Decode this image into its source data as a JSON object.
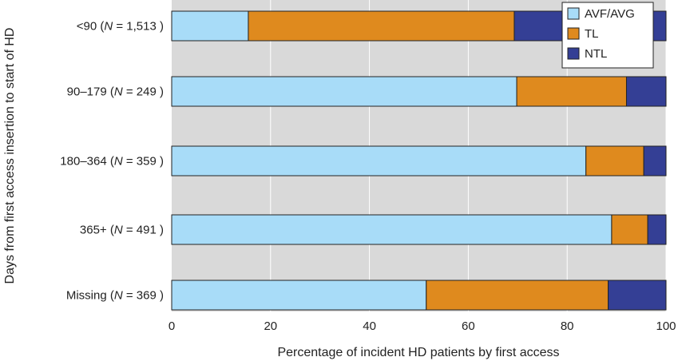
{
  "chart_data": {
    "type": "bar",
    "orientation": "horizontal",
    "stacked": true,
    "title": "",
    "xlabel": "Percentage of incident HD patients by first access",
    "ylabel": "Days from first access insertion to start of HD",
    "xlim": [
      0,
      100
    ],
    "xticks": [
      "0",
      "20",
      "40",
      "60",
      "80",
      "100"
    ],
    "grid": true,
    "legend_position": "top-right",
    "categories": [
      {
        "pre": "<90 (",
        "n": "N",
        "post": " = 1,513 )"
      },
      {
        "pre": "90–179 (",
        "n": "N",
        "post": " = 249 )"
      },
      {
        "pre": "180–364 (",
        "n": "N",
        "post": " = 359 )"
      },
      {
        "pre": "365+ (",
        "n": "N",
        "post": " = 491 )"
      },
      {
        "pre": "Missing (",
        "n": "N",
        "post": " = 369 )"
      }
    ],
    "series": [
      {
        "name": "AVF/AVG",
        "color": "#a8dcf8",
        "values": [
          15.5,
          69.8,
          83.8,
          89.0,
          51.5
        ]
      },
      {
        "name": "TL",
        "color": "#df8a1e",
        "values": [
          53.8,
          22.2,
          11.7,
          7.3,
          36.8
        ]
      },
      {
        "name": "NTL",
        "color": "#343f95",
        "values": [
          30.7,
          8.0,
          4.5,
          3.7,
          11.7
        ]
      }
    ]
  }
}
